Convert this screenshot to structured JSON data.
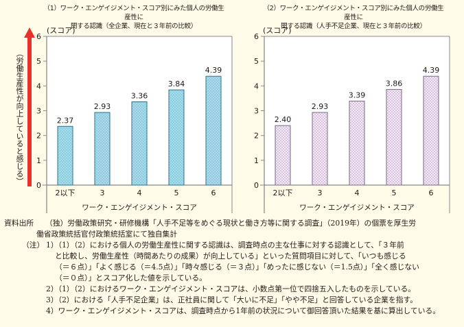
{
  "chart_data": [
    {
      "type": "bar",
      "title": "（1）ワーク・エンゲイジメント・スコア別にみた個人の労働生産性に関する認識（全企業、現在と３年前の比較）",
      "title_lines": [
        "（1）ワーク・エンゲイジメント・スコア別にみた個人の労働生産性に",
        "関する認識（全企業、現在と３年前の比較）"
      ],
      "xlabel": "ワーク・エンゲイジメント・スコア",
      "ylabel": "(スコア)",
      "categories": [
        "2以下",
        "3",
        "4",
        "5",
        "6"
      ],
      "values": [
        2.37,
        2.93,
        3.36,
        3.84,
        4.39
      ],
      "data_labels": [
        "2.37",
        "2.93",
        "3.36",
        "3.84",
        "4.39"
      ],
      "ylim": [
        0,
        6
      ],
      "yticks": [
        "0",
        "1",
        "2",
        "3",
        "4",
        "5",
        "6"
      ],
      "bar_color": "#8fd0e3",
      "bar_stroke": "#2f6f86"
    },
    {
      "type": "bar",
      "title": "（2）ワーク・エンゲイジメント・スコア別にみた個人の労働生産性に関する認識（人手不足企業、現在と３年前の比較）",
      "title_lines": [
        "（2）ワーク・エンゲイジメント・スコア別にみた個人の労働生産性に",
        "関する認識（人手不足企業、現在と３年前の比較）"
      ],
      "xlabel": "ワーク・エンゲイジメント・スコア",
      "ylabel": "(スコア)",
      "categories": [
        "2以下",
        "3",
        "4",
        "5",
        "6"
      ],
      "values": [
        2.4,
        2.93,
        3.39,
        3.86,
        4.39
      ],
      "data_labels": [
        "2.40",
        "2.93",
        "3.39",
        "3.86",
        "4.39"
      ],
      "ylim": [
        0,
        6
      ],
      "yticks": [
        "0",
        "1",
        "2",
        "3",
        "4",
        "5",
        "6"
      ],
      "bar_color": "#e6d4ec",
      "bar_stroke": "#7a6a80"
    }
  ],
  "side_label": "（労働生産性が向上していると感じる）",
  "arrow_color": "#e8312c",
  "notes": {
    "source_label": "資料出所",
    "source_lines": [
      "（独）労働政策研究・研修機構「人手不足等をめぐる現状と働き方等に関する調査」（2019年）の個票を厚生労",
      "働省政策統括官付政策統括室にて独自集計"
    ],
    "note_label": "（注）",
    "note_lines": [
      "1）（1）（2）における個人の労働生産性に関する認識は、調査時点の主な仕事に対する認識として、「３年前",
      "と比較し、労働生産性（時間あたりの成果）が向上している」といった質問項目に対して、「いつも感じる",
      "（＝６点）」「よく感じる（＝4.5点）」「時々感じる（＝３点）」「めったに感じない（＝1.5点）」「全く感じない",
      "（＝０点）」とスコア化した値を示している。",
      "2）（1）（2）におけるワーク・エンゲイジメント・スコアは、小数点第一位で四捨五入したものを示している。",
      "3）（2）における「人手不足企業」は、正社員に関して「大いに不足」「やや不足」と回答している企業を指す。",
      "4）ワーク・エンゲイジメント・スコアは、調査時点から1年前の状況について御回答頂いた結果を基に算出している。"
    ]
  }
}
